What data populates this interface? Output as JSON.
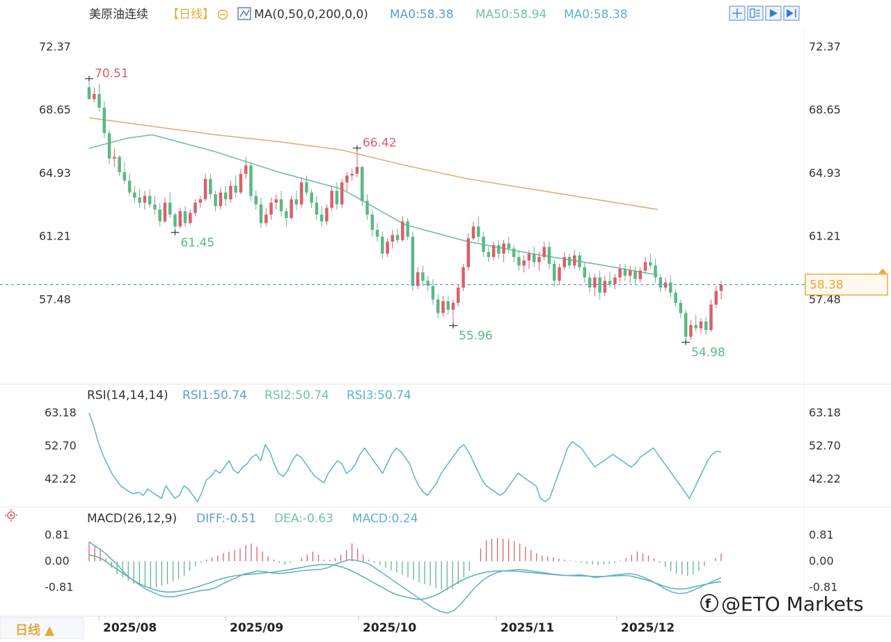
{
  "header": {
    "symbol": "美原油连续",
    "period": "【日线】",
    "indicator": "MA(0,50,0,200,0,0)",
    "ma_values": [
      "MA0:58.38",
      "MA50:58.94",
      "MA0:58.38"
    ]
  },
  "price_axis_labels": [
    "72.37",
    "68.65",
    "64.93",
    "61.21",
    "57.48"
  ],
  "current_price": "58.38",
  "annotations": {
    "high_1": "70.51",
    "high_2": "66.42",
    "low_1": "61.45",
    "low_2": "55.96",
    "low_3": "54.98"
  },
  "rsi_panel": {
    "title": "RSI(14,14,14)",
    "values": [
      "RSI1:50.74",
      "RSI2:50.74",
      "RSI3:50.74"
    ],
    "axis_labels": [
      "63.18",
      "52.70",
      "42.22"
    ]
  },
  "macd_panel": {
    "title": "MACD(26,12,9)",
    "values": [
      "DIFF:-0.51",
      "DEA:-0.63",
      "MACD:0.24"
    ],
    "axis_labels": [
      "0.81",
      "0.00",
      "-0.81"
    ]
  },
  "x_axis_labels": [
    "2025/08",
    "2025/09",
    "2025/10",
    "2025/11",
    "2025/12"
  ],
  "period_button": "日线 ▲",
  "watermark": "@ETO Markets",
  "colors": {
    "up": "#d8606e",
    "down": "#5cb886",
    "ma50": "#6bbfa6",
    "ma200": "#e0ad7c",
    "rsi": "#5ab4c8",
    "diff": "#6aaed6",
    "dea": "#5cb6a6",
    "price_box": "#e5a93a",
    "text_blue": "#5b9bd5",
    "text_green": "#6ec6a0"
  },
  "chart_data": {
    "type": "candlestick",
    "title": "美原油连续 【日线】",
    "x_labels": [
      "2025/08",
      "2025/09",
      "2025/10",
      "2025/11",
      "2025/12"
    ],
    "ylim": [
      52.5,
      73.5
    ],
    "candles": [
      [
        70.0,
        70.51,
        69.5,
        69.3
      ],
      [
        69.3,
        70.0,
        69.1,
        69.6
      ],
      [
        69.6,
        70.2,
        68.6,
        68.8
      ],
      [
        68.8,
        69.2,
        67.0,
        67.3
      ],
      [
        67.3,
        67.5,
        65.5,
        65.8
      ],
      [
        65.8,
        66.4,
        65.3,
        65.9
      ],
      [
        65.9,
        66.0,
        64.8,
        65.0
      ],
      [
        65.0,
        65.6,
        64.3,
        64.5
      ],
      [
        64.5,
        64.9,
        63.6,
        63.8
      ],
      [
        63.8,
        64.2,
        63.2,
        63.5
      ],
      [
        63.5,
        64.0,
        62.9,
        63.2
      ],
      [
        63.2,
        63.9,
        62.8,
        63.6
      ],
      [
        63.6,
        64.0,
        62.9,
        63.1
      ],
      [
        63.1,
        63.6,
        62.5,
        62.8
      ],
      [
        62.8,
        63.2,
        61.8,
        62.1
      ],
      [
        62.1,
        63.5,
        62.0,
        63.2
      ],
      [
        63.2,
        63.8,
        62.3,
        62.5
      ],
      [
        62.5,
        62.6,
        61.45,
        61.8
      ],
      [
        61.8,
        62.9,
        61.7,
        62.7
      ],
      [
        62.7,
        63.0,
        61.8,
        62.0
      ],
      [
        62.0,
        62.8,
        61.9,
        62.6
      ],
      [
        62.6,
        63.4,
        62.4,
        63.2
      ],
      [
        63.2,
        63.6,
        62.9,
        63.4
      ],
      [
        63.4,
        64.9,
        63.3,
        64.6
      ],
      [
        64.6,
        64.9,
        63.4,
        63.7
      ],
      [
        63.7,
        63.9,
        62.7,
        63.0
      ],
      [
        63.0,
        64.1,
        62.8,
        63.8
      ],
      [
        63.8,
        64.2,
        63.0,
        63.4
      ],
      [
        63.4,
        64.5,
        63.2,
        64.2
      ],
      [
        64.2,
        64.8,
        63.5,
        63.8
      ],
      [
        63.8,
        65.2,
        63.7,
        64.9
      ],
      [
        64.9,
        65.9,
        64.6,
        65.4
      ],
      [
        65.4,
        65.6,
        63.3,
        63.6
      ],
      [
        63.6,
        63.9,
        62.8,
        63.1
      ],
      [
        63.1,
        63.5,
        61.7,
        62.0
      ],
      [
        62.0,
        62.9,
        61.8,
        62.5
      ],
      [
        62.5,
        63.5,
        62.2,
        63.2
      ],
      [
        63.2,
        63.7,
        62.8,
        63.4
      ],
      [
        63.4,
        63.9,
        62.4,
        62.7
      ],
      [
        62.7,
        62.9,
        61.8,
        62.3
      ],
      [
        62.3,
        63.6,
        62.2,
        63.4
      ],
      [
        63.4,
        63.9,
        62.8,
        63.1
      ],
      [
        63.1,
        64.7,
        62.9,
        64.4
      ],
      [
        64.4,
        64.8,
        63.6,
        63.8
      ],
      [
        63.8,
        64.0,
        62.9,
        63.2
      ],
      [
        63.2,
        63.6,
        62.2,
        62.5
      ],
      [
        62.5,
        63.0,
        61.8,
        62.1
      ],
      [
        62.1,
        63.1,
        61.9,
        62.9
      ],
      [
        62.9,
        64.2,
        62.7,
        63.9
      ],
      [
        63.9,
        64.4,
        62.8,
        63.1
      ],
      [
        63.1,
        64.6,
        62.9,
        64.4
      ],
      [
        64.4,
        65.0,
        63.9,
        64.8
      ],
      [
        64.8,
        65.2,
        64.5,
        64.9
      ],
      [
        64.9,
        66.42,
        64.7,
        65.3
      ],
      [
        65.3,
        65.4,
        63.0,
        63.3
      ],
      [
        63.3,
        63.7,
        62.2,
        62.5
      ],
      [
        62.5,
        62.8,
        61.2,
        61.6
      ],
      [
        61.6,
        62.0,
        60.9,
        61.2
      ],
      [
        61.2,
        61.5,
        59.9,
        60.2
      ],
      [
        60.2,
        61.1,
        60.0,
        60.9
      ],
      [
        60.9,
        61.6,
        60.5,
        61.3
      ],
      [
        61.3,
        61.7,
        60.8,
        61.0
      ],
      [
        61.0,
        62.4,
        60.9,
        62.1
      ],
      [
        62.1,
        62.3,
        61.0,
        61.2
      ],
      [
        61.2,
        61.5,
        58.0,
        58.3
      ],
      [
        58.3,
        59.4,
        58.1,
        59.1
      ],
      [
        59.1,
        59.5,
        58.3,
        58.6
      ],
      [
        58.6,
        58.9,
        58.0,
        58.3
      ],
      [
        58.3,
        58.7,
        57.2,
        57.5
      ],
      [
        57.5,
        57.8,
        56.4,
        56.7
      ],
      [
        56.7,
        57.7,
        56.5,
        57.4
      ],
      [
        57.4,
        57.7,
        56.6,
        56.9
      ],
      [
        56.9,
        57.5,
        55.96,
        57.3
      ],
      [
        57.3,
        58.4,
        57.1,
        58.2
      ],
      [
        58.2,
        59.6,
        58.0,
        59.4
      ],
      [
        59.4,
        61.4,
        59.2,
        61.1
      ],
      [
        61.1,
        62.1,
        61.0,
        61.8
      ],
      [
        61.8,
        62.4,
        60.9,
        61.2
      ],
      [
        61.2,
        61.5,
        60.0,
        60.3
      ],
      [
        60.3,
        60.6,
        59.7,
        60.0
      ],
      [
        60.0,
        60.9,
        59.8,
        60.7
      ],
      [
        60.7,
        61.0,
        59.9,
        60.2
      ],
      [
        60.2,
        61.0,
        59.7,
        60.8
      ],
      [
        60.8,
        61.2,
        60.2,
        60.5
      ],
      [
        60.5,
        60.7,
        59.7,
        60.0
      ],
      [
        60.0,
        60.4,
        59.2,
        59.5
      ],
      [
        59.5,
        60.1,
        59.1,
        59.8
      ],
      [
        59.8,
        60.4,
        59.3,
        60.2
      ],
      [
        60.2,
        60.6,
        59.4,
        59.7
      ],
      [
        59.7,
        60.3,
        59.2,
        60.0
      ],
      [
        60.0,
        60.9,
        59.8,
        60.6
      ],
      [
        60.6,
        60.9,
        59.3,
        59.6
      ],
      [
        59.6,
        59.8,
        58.3,
        58.6
      ],
      [
        58.6,
        59.6,
        58.4,
        59.4
      ],
      [
        59.4,
        60.3,
        59.2,
        60.0
      ],
      [
        60.0,
        60.2,
        59.3,
        59.5
      ],
      [
        59.5,
        60.4,
        59.3,
        60.1
      ],
      [
        60.1,
        60.3,
        59.2,
        59.4
      ],
      [
        59.4,
        59.7,
        58.5,
        58.8
      ],
      [
        58.8,
        59.1,
        57.9,
        58.2
      ],
      [
        58.2,
        59.0,
        57.7,
        58.8
      ],
      [
        58.8,
        59.2,
        57.5,
        57.9
      ],
      [
        57.9,
        58.9,
        57.7,
        58.6
      ],
      [
        58.6,
        59.1,
        58.2,
        58.4
      ],
      [
        58.4,
        59.0,
        58.1,
        58.8
      ],
      [
        58.8,
        59.6,
        58.5,
        59.3
      ],
      [
        59.3,
        59.6,
        58.6,
        58.9
      ],
      [
        58.9,
        59.5,
        58.5,
        59.2
      ],
      [
        59.2,
        59.4,
        58.4,
        58.7
      ],
      [
        58.7,
        59.4,
        58.5,
        59.2
      ],
      [
        59.2,
        60.0,
        59.0,
        59.7
      ],
      [
        59.7,
        60.2,
        59.3,
        59.5
      ],
      [
        59.5,
        59.9,
        58.5,
        58.8
      ],
      [
        58.8,
        59.0,
        57.9,
        58.2
      ],
      [
        58.2,
        58.8,
        58.0,
        58.5
      ],
      [
        58.5,
        58.9,
        57.6,
        57.9
      ],
      [
        57.9,
        58.1,
        57.1,
        57.3
      ],
      [
        57.3,
        57.5,
        56.4,
        56.7
      ],
      [
        56.7,
        56.9,
        54.98,
        55.3
      ],
      [
        55.3,
        56.3,
        55.1,
        56.0
      ],
      [
        56.0,
        56.6,
        55.6,
        55.8
      ],
      [
        55.8,
        56.4,
        55.5,
        56.2
      ],
      [
        56.2,
        56.5,
        55.4,
        55.7
      ],
      [
        55.7,
        57.5,
        55.6,
        57.2
      ],
      [
        57.2,
        58.3,
        57.0,
        58.0
      ],
      [
        58.0,
        58.6,
        57.5,
        58.38
      ]
    ],
    "ma50": [
      [
        0,
        66.4
      ],
      [
        0.06,
        67.0
      ],
      [
        0.1,
        67.2
      ],
      [
        0.2,
        66.2
      ],
      [
        0.3,
        65.0
      ],
      [
        0.4,
        64.0
      ],
      [
        0.5,
        61.9
      ],
      [
        0.6,
        60.9
      ],
      [
        0.7,
        60.2
      ],
      [
        0.8,
        59.6
      ],
      [
        0.9,
        58.94
      ]
    ],
    "ma200": [
      [
        0,
        68.2
      ],
      [
        0.1,
        67.7
      ],
      [
        0.2,
        67.2
      ],
      [
        0.3,
        66.8
      ],
      [
        0.4,
        66.3
      ],
      [
        0.5,
        65.4
      ],
      [
        0.6,
        64.6
      ],
      [
        0.7,
        64.0
      ],
      [
        0.8,
        63.4
      ],
      [
        0.9,
        62.8
      ]
    ],
    "rsi": {
      "ylim": [
        34,
        66
      ],
      "values": [
        63.2,
        59,
        54,
        50,
        47,
        44,
        42,
        40,
        39,
        38,
        37.5,
        38,
        37,
        39,
        38,
        37,
        36,
        40,
        38,
        36,
        37,
        40,
        39,
        37,
        35,
        38,
        42,
        43,
        45,
        44,
        46,
        48,
        45,
        44,
        46,
        47,
        49,
        50,
        48,
        53,
        51,
        47,
        44,
        43,
        45,
        48,
        50,
        49,
        47,
        45,
        43,
        42,
        41,
        44,
        46,
        48,
        47,
        44,
        45,
        47,
        50,
        52,
        50,
        48,
        46,
        44,
        47,
        50,
        52,
        51,
        49,
        47,
        43,
        40,
        38,
        37,
        39,
        41,
        44,
        46,
        48,
        50,
        52,
        53,
        51,
        48,
        45,
        42,
        40,
        39,
        38,
        37,
        38,
        40,
        42,
        44,
        43,
        42,
        41,
        40,
        36,
        35,
        36,
        40,
        44,
        48,
        52,
        54,
        53,
        52,
        50,
        48,
        46,
        47,
        48,
        49,
        50,
        49,
        48,
        47,
        46,
        47,
        49,
        50,
        51,
        52,
        50,
        48,
        46,
        44,
        42,
        40,
        38,
        36,
        39,
        42,
        45,
        48,
        50,
        51,
        50.74
      ]
    },
    "macd": {
      "ylim": [
        -1.7,
        1.1
      ],
      "diff": [
        0.6,
        0.45,
        0.3,
        0.1,
        -0.1,
        -0.35,
        -0.55,
        -0.7,
        -0.85,
        -0.95,
        -1.05,
        -1.1,
        -1.1,
        -1.05,
        -1.0,
        -0.95,
        -0.9,
        -0.88,
        -0.82,
        -0.7,
        -0.6,
        -0.5,
        -0.4,
        -0.35,
        -0.3,
        -0.32,
        -0.36,
        -0.38,
        -0.36,
        -0.33,
        -0.3,
        -0.28,
        -0.26,
        -0.25,
        -0.2,
        -0.1,
        -0.02,
        0.05,
        0.03,
        -0.02,
        -0.1,
        -0.25,
        -0.4,
        -0.55,
        -0.7,
        -0.85,
        -1.0,
        -1.15,
        -1.3,
        -1.45,
        -1.55,
        -1.6,
        -1.52,
        -1.3,
        -1.05,
        -0.8,
        -0.6,
        -0.45,
        -0.35,
        -0.3,
        -0.28,
        -0.26,
        -0.27,
        -0.3,
        -0.33,
        -0.36,
        -0.4,
        -0.42,
        -0.44,
        -0.43,
        -0.42,
        -0.45,
        -0.5,
        -0.48,
        -0.45,
        -0.42,
        -0.4,
        -0.38,
        -0.42,
        -0.5,
        -0.6,
        -0.72,
        -0.85,
        -0.95,
        -1.0,
        -0.98,
        -0.9,
        -0.8,
        -0.7,
        -0.6,
        -0.51
      ],
      "dea": [
        0.2,
        0.15,
        0.05,
        -0.1,
        -0.25,
        -0.4,
        -0.55,
        -0.68,
        -0.78,
        -0.86,
        -0.92,
        -0.95,
        -0.95,
        -0.92,
        -0.88,
        -0.82,
        -0.75,
        -0.68,
        -0.6,
        -0.53,
        -0.48,
        -0.44,
        -0.42,
        -0.4,
        -0.38,
        -0.36,
        -0.34,
        -0.31,
        -0.28,
        -0.24,
        -0.2,
        -0.16,
        -0.13,
        -0.1,
        -0.1,
        -0.12,
        -0.18,
        -0.26,
        -0.36,
        -0.48,
        -0.6,
        -0.72,
        -0.84,
        -0.96,
        -1.05,
        -1.1,
        -1.15,
        -1.18,
        -1.15,
        -1.08,
        -0.98,
        -0.85,
        -0.72,
        -0.6,
        -0.5,
        -0.42,
        -0.36,
        -0.32,
        -0.3,
        -0.3,
        -0.3,
        -0.31,
        -0.33,
        -0.35,
        -0.37,
        -0.39,
        -0.41,
        -0.43,
        -0.44,
        -0.45,
        -0.45,
        -0.46,
        -0.47,
        -0.47,
        -0.46,
        -0.45,
        -0.44,
        -0.45,
        -0.5,
        -0.56,
        -0.62,
        -0.7,
        -0.78,
        -0.84,
        -0.86,
        -0.85,
        -0.8,
        -0.75,
        -0.7,
        -0.66,
        -0.63
      ],
      "hist": [
        0.6,
        0.5,
        0.4,
        0.1,
        -0.2,
        -0.4,
        -0.5,
        -0.6,
        -0.7,
        -0.75,
        -0.8,
        -0.82,
        -0.8,
        -0.75,
        -0.7,
        -0.62,
        -0.55,
        -0.45,
        -0.3,
        -0.15,
        -0.05,
        0.05,
        0.12,
        0.18,
        0.25,
        0.3,
        0.35,
        0.4,
        0.5,
        0.55,
        0.45,
        0.3,
        0.15,
        0.05,
        -0.05,
        -0.1,
        -0.05,
        0.0,
        0.1,
        0.2,
        0.3,
        0.2,
        0.05,
        0.05,
        0.1,
        0.2,
        0.35,
        0.55,
        0.4,
        0.2,
        0.05,
        -0.05,
        -0.12,
        -0.2,
        -0.28,
        -0.35,
        -0.42,
        -0.5,
        -0.58,
        -0.65,
        -0.7,
        -0.75,
        -0.82,
        -0.88,
        -0.9,
        -0.85,
        -0.7,
        -0.5,
        -0.3,
        0.0,
        0.4,
        0.65,
        0.7,
        0.72,
        0.7,
        0.68,
        0.62,
        0.55,
        0.45,
        0.35,
        0.25,
        0.18,
        0.15,
        0.12,
        0.08,
        0.05,
        0.02,
        -0.02,
        -0.05,
        -0.08,
        -0.1,
        -0.12,
        -0.1,
        -0.08,
        -0.05,
        0.02,
        0.1,
        0.2,
        0.3,
        0.25,
        0.18,
        0.1,
        -0.05,
        -0.18,
        -0.3,
        -0.38,
        -0.42,
        -0.45,
        -0.4,
        -0.3,
        -0.15,
        0.0,
        0.1,
        0.24
      ]
    }
  }
}
